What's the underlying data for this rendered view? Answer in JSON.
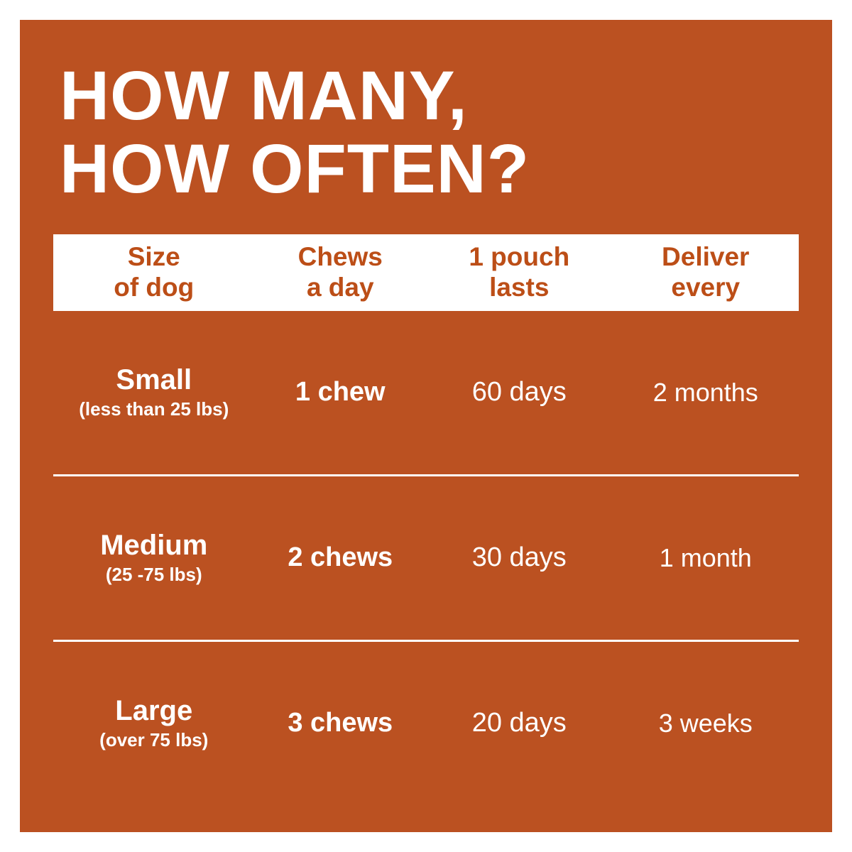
{
  "colors": {
    "background": "#bb5121",
    "header_band_bg": "#ffffff",
    "header_text": "#bc4e17",
    "body_text": "#ffffff"
  },
  "title": {
    "line1": "HOW MANY,",
    "line2": "HOW OFTEN?"
  },
  "table": {
    "headers": [
      {
        "line1": "Size",
        "line2": "of dog"
      },
      {
        "line1": "Chews",
        "line2": "a day"
      },
      {
        "line1": "1 pouch",
        "line2": "lasts"
      },
      {
        "line1": "Deliver",
        "line2": "every"
      }
    ],
    "rows": [
      {
        "size": "Small",
        "size_note": "(less than 25 lbs)",
        "chews": "1 chew",
        "pouch": "60 days",
        "deliver": "2 months"
      },
      {
        "size": "Medium",
        "size_note": "(25 -75 lbs)",
        "chews": "2 chews",
        "pouch": "30 days",
        "deliver": "1 month"
      },
      {
        "size": "Large",
        "size_note": "(over 75 lbs)",
        "chews": "3 chews",
        "pouch": "20 days",
        "deliver": "3 weeks"
      }
    ]
  },
  "chart_data": {
    "type": "table",
    "title": "HOW MANY, HOW OFTEN?",
    "columns": [
      "Size of dog",
      "Chews a day",
      "1 pouch lasts",
      "Deliver every"
    ],
    "rows": [
      [
        "Small (less than 25 lbs)",
        "1 chew",
        "60 days",
        "2 months"
      ],
      [
        "Medium (25 -75 lbs)",
        "2 chews",
        "30 days",
        "1 month"
      ],
      [
        "Large (over 75 lbs)",
        "3 chews",
        "20 days",
        "3 weeks"
      ]
    ]
  }
}
